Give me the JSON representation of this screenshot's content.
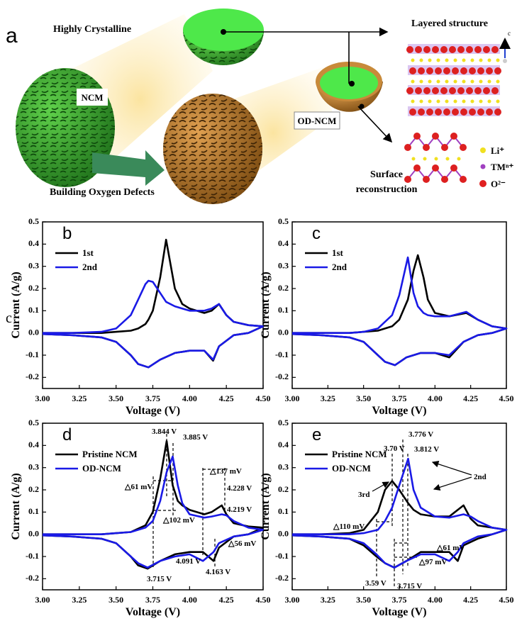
{
  "panel_a": {
    "label": "a",
    "highly_crystalline": "Highly Crystalline",
    "ncm": "NCM",
    "od_ncm": "OD-NCM",
    "building": "Building Oxygen Defects",
    "layered": "Layered structure",
    "surface_1": "Surface",
    "surface_2": "reconstruction",
    "axis_c": "c",
    "legend": [
      "Li⁺",
      "TMⁿ⁺",
      "O²⁻"
    ]
  },
  "side_label": "c",
  "chart_data": [
    {
      "type": "line",
      "label": "b",
      "xlabel": "Voltage (V)",
      "ylabel": "Current (A/g)",
      "legend": "upper left",
      "xlim": [
        3.0,
        4.5
      ],
      "ylim": [
        -0.25,
        0.5
      ],
      "xticks": [
        {
          "value": 3,
          "label": "3.00"
        },
        3.25,
        {
          "value": 3.5,
          "label": "3.50"
        },
        3.75,
        {
          "value": 4,
          "label": "4.00"
        },
        4.25,
        {
          "value": 4.5,
          "label": "4.50"
        }
      ],
      "yticks": [
        -0.2,
        -0.1,
        {
          "value": 0,
          "label": "0.0"
        },
        0.1,
        0.2,
        0.3,
        0.4,
        0.5
      ],
      "x": [
        3.0,
        3.2,
        3.4,
        3.5,
        3.6,
        3.65,
        3.7,
        3.72,
        3.75,
        3.8,
        3.84,
        3.9,
        3.95,
        4.0,
        4.1,
        4.15,
        4.2,
        4.25,
        4.3,
        4.4,
        4.5,
        4.4,
        4.3,
        4.2,
        4.16,
        4.1,
        4.0,
        3.9,
        3.8,
        3.72,
        3.65,
        3.6,
        3.5,
        3.4,
        3.2,
        3.0
      ],
      "series": [
        {
          "name": "1st",
          "color": "#000000",
          "values": [
            0,
            0,
            0,
            0.005,
            0.01,
            0.02,
            0.04,
            0.06,
            0.1,
            0.25,
            0.42,
            0.2,
            0.13,
            0.11,
            0.09,
            0.1,
            0.13,
            0.08,
            0.05,
            0.035,
            0.03,
            0,
            -0.01,
            -0.06,
            -0.125,
            -0.08,
            -0.08,
            -0.09,
            -0.12,
            -0.155,
            -0.14,
            -0.1,
            -0.04,
            -0.02,
            -0.01,
            -0.005
          ]
        },
        {
          "name": "2nd",
          "color": "#1a1ae6",
          "values": [
            0,
            0,
            0.005,
            0.02,
            0.08,
            0.15,
            0.22,
            0.235,
            0.23,
            0.18,
            0.14,
            0.12,
            0.11,
            0.1,
            0.1,
            0.11,
            0.13,
            0.08,
            0.05,
            0.035,
            0.03,
            0,
            -0.01,
            -0.06,
            -0.12,
            -0.08,
            -0.08,
            -0.09,
            -0.12,
            -0.155,
            -0.14,
            -0.1,
            -0.04,
            -0.02,
            -0.01,
            -0.005
          ]
        }
      ],
      "annotations": []
    },
    {
      "type": "line",
      "label": "c",
      "xlabel": "Voltage (V)",
      "ylabel": "Current (A/g)",
      "legend": "upper left",
      "xlim": [
        3.0,
        4.5
      ],
      "ylim": [
        -0.25,
        0.5
      ],
      "xticks": [
        {
          "value": 3,
          "label": "3.00"
        },
        3.25,
        {
          "value": 3.5,
          "label": "3.50"
        },
        3.75,
        {
          "value": 4,
          "label": "4.00"
        },
        4.25,
        {
          "value": 4.5,
          "label": "4.50"
        }
      ],
      "yticks": [
        -0.2,
        -0.1,
        {
          "value": 0,
          "label": "0.0"
        },
        0.1,
        0.2,
        0.3,
        0.4,
        0.5
      ],
      "x": [
        3.0,
        3.2,
        3.4,
        3.5,
        3.6,
        3.7,
        3.75,
        3.81,
        3.85,
        3.88,
        3.92,
        3.95,
        4.0,
        4.1,
        4.22,
        4.3,
        4.4,
        4.5,
        4.4,
        4.3,
        4.2,
        4.1,
        4.0,
        3.9,
        3.8,
        3.72,
        3.65,
        3.6,
        3.5,
        3.4,
        3.2,
        3.0
      ],
      "series": [
        {
          "name": "1st",
          "color": "#000000",
          "values": [
            0,
            0,
            0,
            0.005,
            0.01,
            0.03,
            0.06,
            0.15,
            0.28,
            0.35,
            0.25,
            0.15,
            0.09,
            0.075,
            0.09,
            0.06,
            0.03,
            0.02,
            0,
            -0.01,
            -0.04,
            -0.11,
            -0.09,
            -0.09,
            -0.11,
            -0.145,
            -0.13,
            -0.1,
            -0.04,
            -0.02,
            -0.01,
            -0.005
          ]
        },
        {
          "name": "2nd",
          "color": "#1a1ae6",
          "values": [
            0,
            0,
            0,
            0.005,
            0.02,
            0.08,
            0.17,
            0.34,
            0.18,
            0.12,
            0.09,
            0.08,
            0.075,
            0.075,
            0.095,
            0.06,
            0.03,
            0.02,
            0,
            -0.01,
            -0.04,
            -0.1,
            -0.09,
            -0.09,
            -0.11,
            -0.145,
            -0.13,
            -0.1,
            -0.04,
            -0.02,
            -0.01,
            -0.005
          ]
        }
      ],
      "annotations": []
    },
    {
      "type": "line",
      "label": "d",
      "xlabel": "Voltage (V)",
      "ylabel": "Current (A/g)",
      "legend": "upper left",
      "xlim": [
        3.0,
        4.5
      ],
      "ylim": [
        -0.25,
        0.5
      ],
      "xticks": [
        {
          "value": 3,
          "label": "3.00"
        },
        3.25,
        {
          "value": 3.5,
          "label": "3.50"
        },
        3.75,
        {
          "value": 4,
          "label": "4.00"
        },
        4.25,
        {
          "value": 4.5,
          "label": "4.50"
        }
      ],
      "yticks": [
        -0.2,
        -0.1,
        {
          "value": 0,
          "label": "0.0"
        },
        0.1,
        0.2,
        0.3,
        0.4,
        0.5
      ],
      "x": [
        3.0,
        3.2,
        3.4,
        3.5,
        3.6,
        3.7,
        3.75,
        3.8,
        3.844,
        3.885,
        3.92,
        3.95,
        4.0,
        4.1,
        4.15,
        4.219,
        4.25,
        4.3,
        4.4,
        4.5,
        4.4,
        4.3,
        4.2,
        4.163,
        4.091,
        4.0,
        3.9,
        3.8,
        3.715,
        3.65,
        3.6,
        3.5,
        3.4,
        3.2,
        3.0
      ],
      "series": [
        {
          "name": "Pristine NCM",
          "color": "#000000",
          "values": [
            0,
            0,
            0,
            0.005,
            0.01,
            0.04,
            0.1,
            0.25,
            0.42,
            0.22,
            0.15,
            0.13,
            0.11,
            0.09,
            0.1,
            0.13,
            0.09,
            0.05,
            0.035,
            0.03,
            0,
            -0.01,
            -0.06,
            -0.12,
            -0.08,
            -0.08,
            -0.09,
            -0.12,
            -0.155,
            -0.14,
            -0.1,
            -0.04,
            -0.02,
            -0.01,
            -0.005
          ]
        },
        {
          "name": "OD-NCM",
          "color": "#1a1ae6",
          "values": [
            0,
            0,
            0,
            0.005,
            0.01,
            0.03,
            0.06,
            0.15,
            0.28,
            0.35,
            0.22,
            0.14,
            0.09,
            0.075,
            0.08,
            0.09,
            0.085,
            0.06,
            0.03,
            0.02,
            0,
            -0.01,
            -0.04,
            -0.08,
            -0.12,
            -0.09,
            -0.1,
            -0.12,
            -0.15,
            -0.13,
            -0.1,
            -0.04,
            -0.02,
            -0.01,
            -0.005
          ]
        }
      ],
      "annotations": [
        "3.844 V",
        "3.885 V",
        "△61 mV",
        "△102 mV",
        "△137 mV",
        "4.228 V",
        "4.219 V",
        "4.091 V",
        "△56 mV",
        "4.163 V",
        "3.715 V"
      ]
    },
    {
      "type": "line",
      "label": "e",
      "xlabel": "Voltage (V)",
      "ylabel": "Current (A/g)",
      "legend": "upper left",
      "xlim": [
        3.0,
        4.5
      ],
      "ylim": [
        -0.25,
        0.5
      ],
      "xticks": [
        {
          "value": 3,
          "label": "3.00"
        },
        3.25,
        {
          "value": 3.5,
          "label": "3.50"
        },
        3.75,
        {
          "value": 4,
          "label": "4.00"
        },
        4.25,
        {
          "value": 4.5,
          "label": "4.50"
        }
      ],
      "yticks": [
        -0.2,
        -0.1,
        {
          "value": 0,
          "label": "0.0"
        },
        0.1,
        0.2,
        0.3,
        0.4,
        0.5
      ],
      "x": [
        3.0,
        3.2,
        3.4,
        3.5,
        3.6,
        3.65,
        3.7,
        3.75,
        3.812,
        3.85,
        3.9,
        4.0,
        4.1,
        4.2,
        4.25,
        4.3,
        4.4,
        4.5,
        4.4,
        4.3,
        4.2,
        4.16,
        4.1,
        4.0,
        3.9,
        3.8,
        3.715,
        3.65,
        3.59,
        3.5,
        3.4,
        3.2,
        3.0
      ],
      "series": [
        {
          "name": "Pristine NCM",
          "color": "#000000",
          "values": [
            0,
            0,
            0.005,
            0.02,
            0.1,
            0.2,
            0.24,
            0.2,
            0.14,
            0.11,
            0.09,
            0.08,
            0.08,
            0.13,
            0.07,
            0.04,
            0.03,
            0.02,
            0,
            -0.02,
            -0.05,
            -0.12,
            -0.08,
            -0.08,
            -0.08,
            -0.12,
            -0.15,
            -0.13,
            -0.1,
            -0.05,
            -0.02,
            -0.01,
            -0.005
          ]
        },
        {
          "name": "OD-NCM",
          "color": "#1a1ae6",
          "values": [
            0,
            0,
            0,
            0.005,
            0.02,
            0.06,
            0.12,
            0.22,
            0.34,
            0.2,
            0.12,
            0.08,
            0.075,
            0.09,
            0.08,
            0.06,
            0.03,
            0.02,
            0,
            -0.01,
            -0.04,
            -0.08,
            -0.12,
            -0.09,
            -0.09,
            -0.12,
            -0.15,
            -0.13,
            -0.09,
            -0.04,
            -0.02,
            -0.01,
            -0.005
          ]
        }
      ],
      "annotations": [
        "3.776 V",
        "3.70 V",
        "3.812 V",
        "2nd",
        "3rd",
        "△110 mV",
        "△61 mV",
        "△97 mV",
        "3.59 V",
        "3.715 V"
      ]
    }
  ]
}
